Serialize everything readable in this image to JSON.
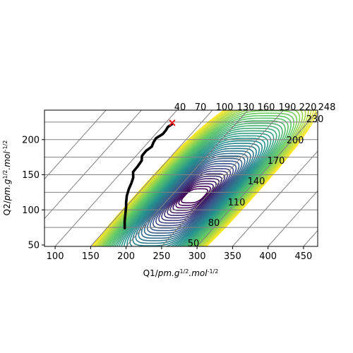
{
  "chart_data": {
    "type": "contour",
    "title": "",
    "xlabel": "Q1/pm.g^{1/2}.mol^{-1/2}",
    "ylabel": "Q2/pm.g^{1/2}.mol^{-1/2}",
    "xlim": [
      85,
      470
    ],
    "ylim": [
      48,
      242
    ],
    "x_ticks": [
      100,
      150,
      200,
      250,
      300,
      350,
      400,
      450
    ],
    "y_ticks": [
      50,
      100,
      150,
      200
    ],
    "grid": true,
    "grid_shear_per_unit": 1.13,
    "top_grid_labels": [
      "40",
      "70",
      "100",
      "130",
      "160",
      "190",
      "220",
      "248"
    ],
    "right_grid_labels": [
      "50",
      "80",
      "110",
      "140",
      "170",
      "200",
      "230"
    ],
    "contour_center": [
      270,
      90
    ],
    "contour_levels": 40,
    "colormap": [
      "#440154",
      "#3b528b",
      "#21908d",
      "#5dc863",
      "#fde725"
    ],
    "path": {
      "x": [
        198,
        198,
        199,
        200,
        200,
        201,
        204,
        206,
        209,
        212,
        216,
        220,
        224,
        229,
        234,
        239,
        244,
        250,
        255,
        261,
        264
      ],
      "y": [
        74,
        84,
        94,
        104,
        110,
        120,
        130,
        138,
        146,
        154,
        162,
        170,
        177,
        184,
        190,
        196,
        202,
        208,
        213,
        218,
        222
      ],
      "color": "#000000"
    },
    "end_marker": {
      "x": 265,
      "y": 224,
      "color": "#e41a1c",
      "symbol": "x"
    }
  }
}
